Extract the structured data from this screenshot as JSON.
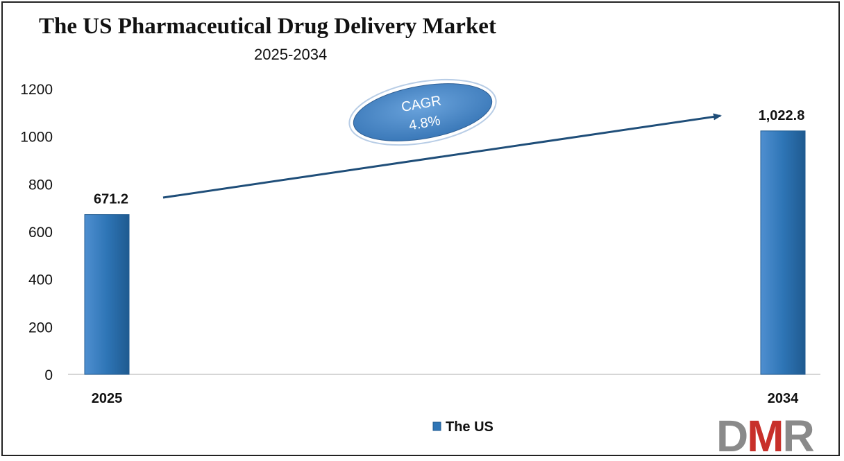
{
  "chart_data": {
    "type": "bar",
    "title": "The US Pharmaceutical Drug Delivery Market",
    "subtitle": "2025-2034",
    "categories": [
      "2025",
      "2034"
    ],
    "series": [
      {
        "name": "The US",
        "values": [
          671.2,
          1022.8
        ],
        "labels": [
          "671.2",
          "1,022.8"
        ]
      }
    ],
    "ylim": [
      0,
      1200
    ],
    "yticks": [
      "0",
      "200",
      "400",
      "600",
      "800",
      "1000",
      "1200"
    ],
    "grid": false,
    "legend": "bottom-center",
    "annotation": {
      "line1": "CAGR",
      "line2": "4.8%"
    },
    "bar_color": "#2e75b6"
  },
  "logo": {
    "d": "D",
    "m": "M",
    "r": "R"
  }
}
